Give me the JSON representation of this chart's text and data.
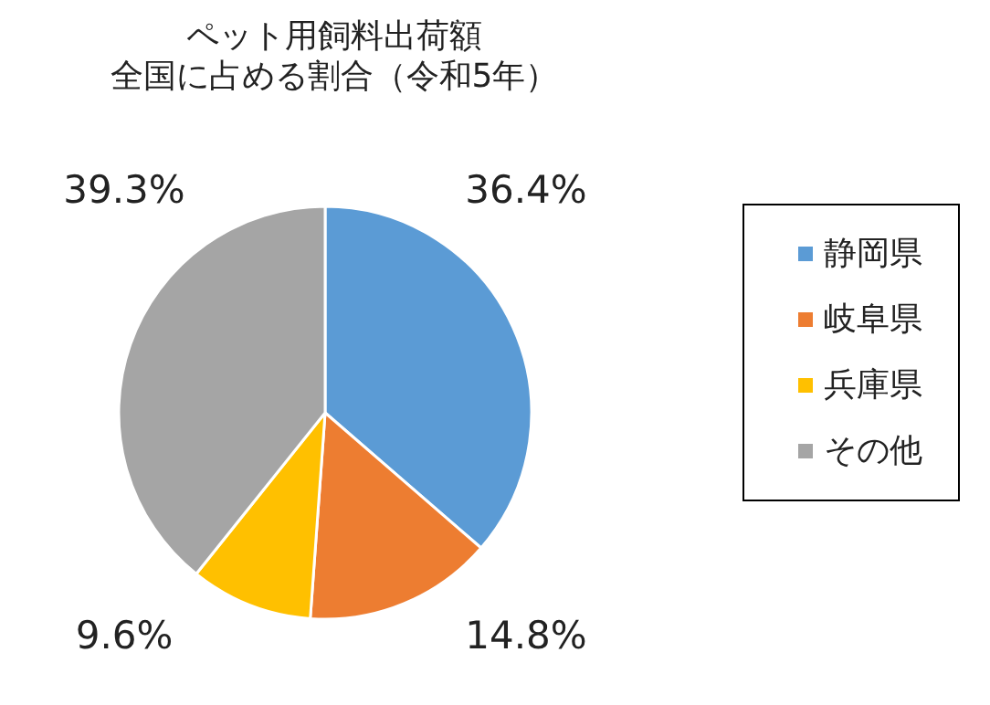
{
  "chart_data": {
    "type": "pie",
    "title": "ペット用飼料出荷額",
    "subtitle": "全国に占める割合（令和5年）",
    "categories": [
      "静岡県",
      "岐阜県",
      "兵庫県",
      "その他"
    ],
    "values": [
      36.4,
      14.8,
      9.6,
      39.3
    ],
    "colors": [
      "#5b9bd5",
      "#ed7d31",
      "#ffc000",
      "#a5a5a5"
    ],
    "value_labels": [
      "36.4%",
      "14.8%",
      "9.6%",
      "39.3%"
    ],
    "legend": "right"
  }
}
